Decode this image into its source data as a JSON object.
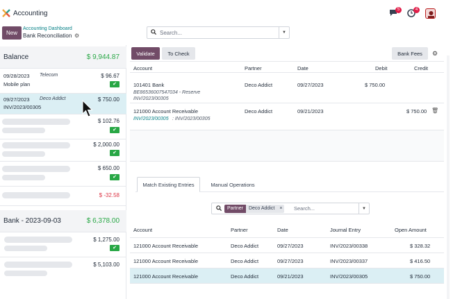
{
  "app": {
    "title": "Accounting"
  },
  "navbar": {
    "icons": [
      "chat-icon",
      "clock-icon",
      "avatar-icon"
    ],
    "messages_badge": "5",
    "activity_badge": "4"
  },
  "control_panel": {
    "new_label": "New",
    "breadcrumb_parent": "Accounting Dashboard",
    "breadcrumb_current": "Bank Reconciliation",
    "search_placeholder": "Search..."
  },
  "journals": [
    {
      "name": "Balance",
      "balance": "$ 9,944.87",
      "lines": [
        {
          "date": "09/28/2023",
          "partner": "Telecom",
          "label": "Mobile plan",
          "amount": "$ 96.67",
          "reconciled": true
        },
        {
          "date": "09/27/2023",
          "partner": "Deco Addict",
          "label": "INV/2023/00305",
          "amount": "$ 750.00",
          "reconciled": false,
          "selected": true
        },
        {
          "amount": "$ 102.76",
          "reconciled": true
        },
        {
          "amount": "$ 2,000.00",
          "reconciled": true
        },
        {
          "amount": "$ 650.00",
          "reconciled": true
        },
        {
          "amount": "$ -32.58",
          "reconciled": false,
          "negative": true
        }
      ]
    },
    {
      "name": "Bank - 2023-09-03",
      "balance": "$ 6,378.00",
      "lines": [
        {
          "amount": "$ 1,275.00",
          "reconciled": true
        },
        {
          "amount": "$ 5,103.00",
          "reconciled": false
        }
      ]
    }
  ],
  "toolbar": {
    "validate_label": "Validate",
    "to_check_label": "To Check",
    "bank_fees_label": "Bank Fees"
  },
  "entries": {
    "columns": [
      "Account",
      "Partner",
      "Date",
      "Debit",
      "Credit"
    ],
    "rows": [
      {
        "account": "101401 Bank",
        "sub1": "BE86536007547034 - Reserve",
        "sub2": "INV/2023/00305",
        "partner": "Deco Addict",
        "date": "09/27/2023",
        "debit": "$ 750.00",
        "credit": ""
      },
      {
        "account": "121000 Account Receivable",
        "sub_link": "INV/2023/00305",
        "sub_rest": ": INV/2023/00305",
        "partner": "Deco Addict",
        "date": "09/21/2023",
        "debit": "",
        "credit": "$ 750.00"
      }
    ]
  },
  "tabs": [
    "Match Existing Entries",
    "Manual Operations"
  ],
  "match_search": {
    "facet_key": "Partner",
    "facet_value": "Deco Addict",
    "placeholder": "Search..."
  },
  "match_table": {
    "columns": [
      "Account",
      "Partner",
      "Date",
      "Journal Entry",
      "Open Amount"
    ],
    "rows": [
      {
        "account": "121000 Account Receivable",
        "partner": "Deco Addict",
        "date": "09/27/2023",
        "entry": "INV/2023/00338",
        "amount": "$ 328.32"
      },
      {
        "account": "121000 Account Receivable",
        "partner": "Deco Addict",
        "date": "09/27/2023",
        "entry": "INV/2023/00337",
        "amount": "$ 416.50"
      },
      {
        "account": "121000 Account Receivable",
        "partner": "Deco Addict",
        "date": "09/21/2023",
        "entry": "INV/2023/00305",
        "amount": "$ 750.00",
        "selected": true
      }
    ]
  },
  "colors": {
    "brand": "#714b67",
    "positive": "#28a745",
    "negative": "#dc3545",
    "link": "#017e84",
    "selection": "#dbeff4"
  }
}
